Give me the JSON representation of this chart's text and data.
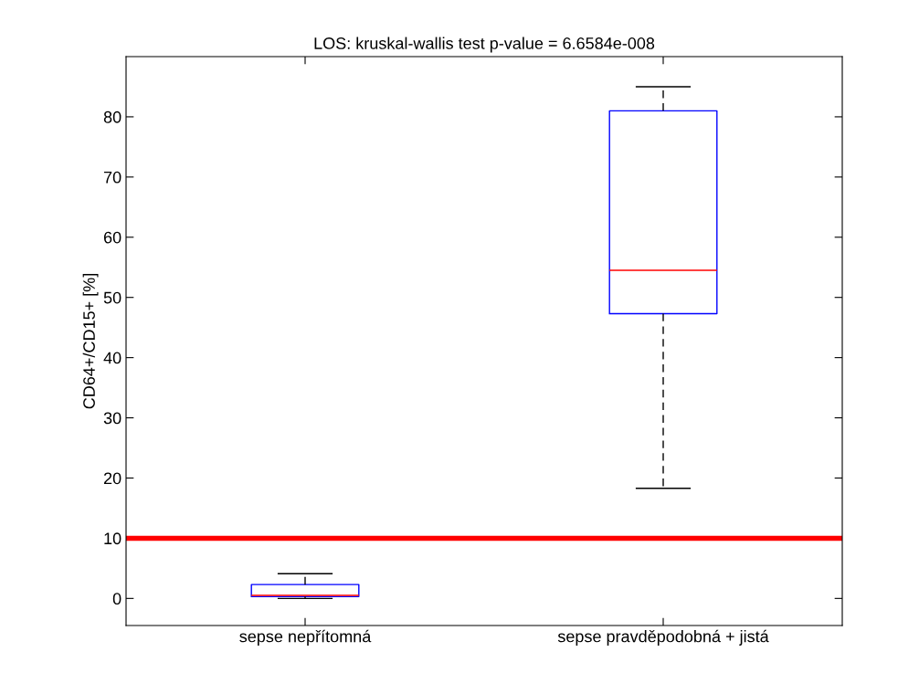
{
  "chart_data": {
    "type": "box",
    "title": "LOS: kruskal-wallis test p-value = 6.6584e-008",
    "ylabel": "CD64+/CD15+ [%]",
    "categories": [
      "sepse nepřítomná",
      "sepse pravděpodobná + jistá"
    ],
    "boxes": [
      {
        "low": 0,
        "q1": 0.3,
        "median": 0.5,
        "q3": 2.3,
        "high": 4.1
      },
      {
        "low": 18.3,
        "q1": 47.3,
        "median": 54.5,
        "q3": 81,
        "high": 85
      }
    ],
    "color": "#0000ff",
    "ylim": [
      -4.5,
      90
    ],
    "yticks": [
      0,
      10,
      20,
      30,
      40,
      50,
      60,
      70,
      80
    ],
    "ref_lines": [
      {
        "axis": "y",
        "value": 10,
        "color": "#ff0000",
        "line_style": "solid"
      }
    ],
    "grid": false
  }
}
